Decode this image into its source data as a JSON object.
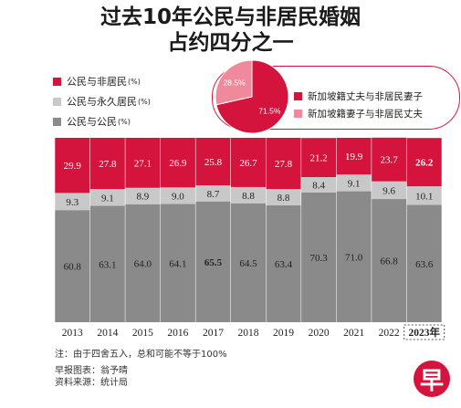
{
  "title_lines": [
    "过去10年公民与非居民婚姻",
    "占约四分之一"
  ],
  "legend": [
    {
      "label": "公民与非居民",
      "unit": "(%)",
      "color": "#d4143c"
    },
    {
      "label": "公民与永久居民",
      "unit": "(%)",
      "color": "#c8c8c8"
    },
    {
      "label": "公民与公民",
      "unit": "(%)",
      "color": "#8a8a8a"
    }
  ],
  "inset_pie": {
    "slices": [
      {
        "label": "新加坡籍丈夫与非居民妻子",
        "value": 71.5,
        "value_label": "71.5%",
        "color": "#d4143c"
      },
      {
        "label": "新加坡籍妻子与非居民丈夫",
        "value": 28.5,
        "value_label": "28.5%",
        "color": "#ee8a9c"
      }
    ]
  },
  "chart_data": {
    "type": "bar",
    "stacked": true,
    "categories": [
      "2013",
      "2014",
      "2015",
      "2016",
      "2017",
      "2018",
      "2019",
      "2020",
      "2021",
      "2022",
      "2023"
    ],
    "last_category_suffix": "年",
    "series": [
      {
        "name": "公民与公民",
        "color": "#8a8a8a",
        "values": [
          60.8,
          63.1,
          64.0,
          64.1,
          65.5,
          64.5,
          63.4,
          70.3,
          71.0,
          66.8,
          63.6
        ],
        "labels": [
          "60.8",
          "63.1",
          "64.0",
          "64.1",
          "65.5",
          "64.5",
          "63.4",
          "70.3",
          "71.0",
          "66.8",
          "63.6"
        ]
      },
      {
        "name": "公民与永久居民",
        "color": "#c8c8c8",
        "values": [
          9.3,
          9.1,
          8.9,
          9.0,
          8.7,
          8.8,
          8.8,
          8.4,
          9.1,
          9.6,
          10.1
        ],
        "labels": [
          "9.3",
          "9.1",
          "8.9",
          "9.0",
          "8.7",
          "8.8",
          "8.8",
          "8.4",
          "9.1",
          "9.6",
          "10.1"
        ]
      },
      {
        "name": "公民与非居民",
        "color": "#d4143c",
        "values": [
          29.9,
          27.8,
          27.1,
          26.9,
          25.8,
          26.7,
          27.8,
          21.2,
          19.9,
          23.7,
          26.2
        ],
        "labels": [
          "29.9",
          "27.8",
          "27.1",
          "26.9",
          "25.8",
          "26.7",
          "27.8",
          "21.2",
          "19.9",
          "23.7",
          "26.2"
        ]
      }
    ],
    "ylim": [
      0,
      100
    ]
  },
  "note": "注：由于四舍五入，总和可能不等于100%",
  "credit_chart": "早报图表：翁予晴",
  "credit_source": "资料来源：统计局",
  "logo_text": "早"
}
